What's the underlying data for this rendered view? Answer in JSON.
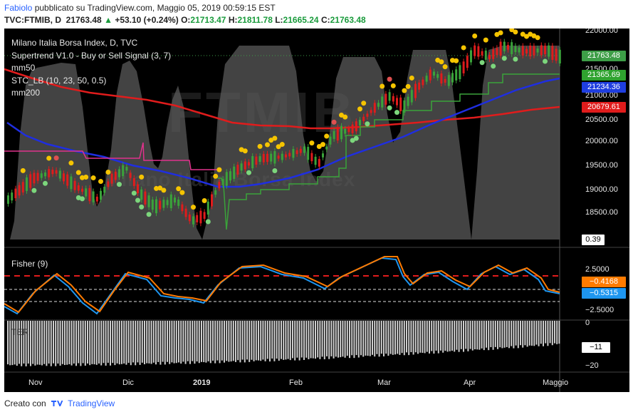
{
  "header": {
    "author": "Fabiolo",
    "published_text": "pubblicato su TradingView.com, Maggio 05, 2019 00:59:15 EST",
    "symbol": "TVC:FTMIB, D",
    "last": "21763.48",
    "change": "+53.10 (+0.24%)",
    "o_label": "O:",
    "o_value": "21713.47",
    "h_label": "H:",
    "h_value": "21811.78",
    "l_label": "L:",
    "l_value": "21665.24",
    "c_label": "C:",
    "c_value": "21763.48"
  },
  "watermark": {
    "symbol": "FTMIB",
    "name": "Milano Italia Borsa Index"
  },
  "main_pane": {
    "title": "Milano Italia Borsa Index, D, TVC",
    "indicators": [
      "Supertrend V1.0 - Buy or Sell Signal (3, 7)",
      "mm50",
      "STC_LB (10, 23, 50, 0.5)",
      "mm200"
    ],
    "price_ticks": [
      "22000.00",
      "21500.00",
      "21000.00",
      "20500.00",
      "20000.00",
      "19500.00",
      "19000.00",
      "18500.00"
    ],
    "tags": [
      {
        "value": "21763.48",
        "color": "#3d9e47"
      },
      {
        "value": "21365.69",
        "color": "#2fa32f"
      },
      {
        "value": "21234.36",
        "color": "#1f3ee0"
      },
      {
        "value": "20679.61",
        "color": "#e01c1c"
      },
      {
        "value": "0.39",
        "color": "#ffffff"
      }
    ]
  },
  "fisher_pane": {
    "title": "Fisher (9)",
    "ticks": [
      "2.5000",
      "−2.5000"
    ],
    "tags": [
      {
        "value": "−0.4168",
        "color": "#ff7b00"
      },
      {
        "value": "−0.5315",
        "color": "#1e96f0"
      }
    ]
  },
  "ter_pane": {
    "title": "TER",
    "ticks": [
      "0",
      "−20"
    ],
    "tag": "−11"
  },
  "x_axis": {
    "labels": [
      {
        "text": "Nov",
        "bold": false
      },
      {
        "text": "Dic",
        "bold": false
      },
      {
        "text": "2019",
        "bold": true
      },
      {
        "text": "Feb",
        "bold": false
      },
      {
        "text": "Mar",
        "bold": false
      },
      {
        "text": "Apr",
        "bold": false
      },
      {
        "text": "Maggio",
        "bold": false
      }
    ]
  },
  "footer": {
    "created_with": "Creato con",
    "brand": "TradingView"
  },
  "colors": {
    "background": "#000000",
    "mm50": "#1f2ee0",
    "mm200": "#e01c1c",
    "supertrend": "#3aa33a",
    "fisher_fast": "#ff7b00",
    "fisher_slow": "#1e96f0"
  }
}
